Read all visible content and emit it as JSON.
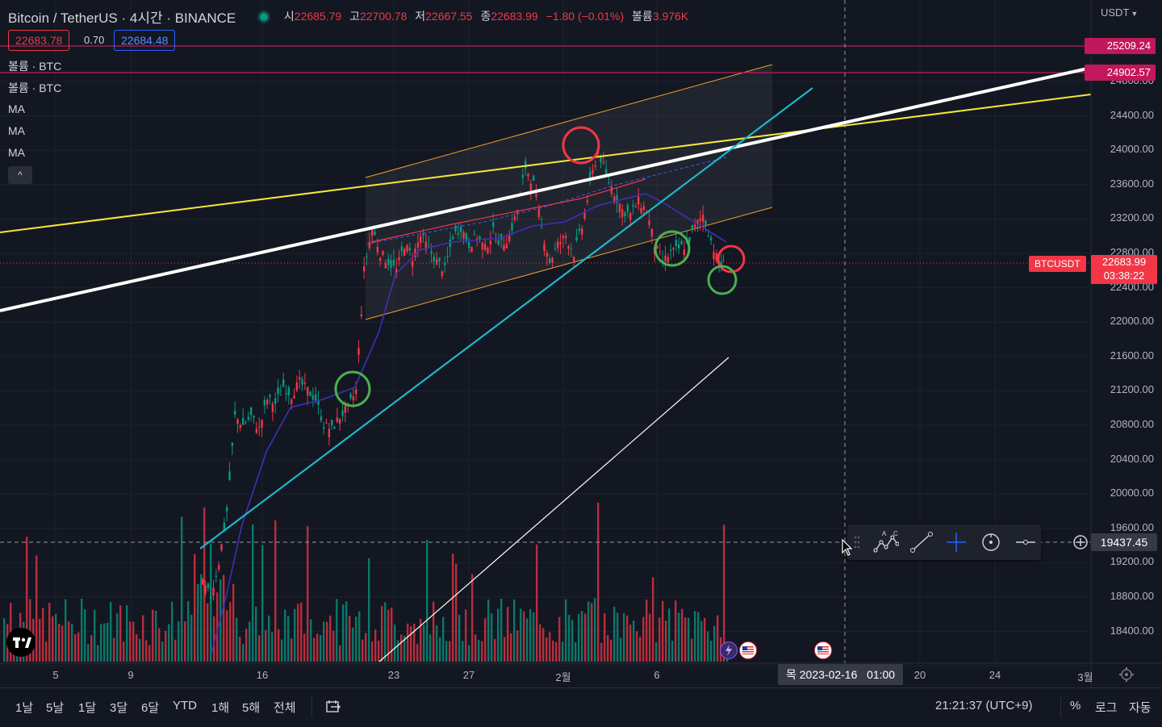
{
  "header": {
    "title": "Bitcoin / TetherUS · 4시간 · BINANCE",
    "ohlc": [
      {
        "key": "시",
        "value": "22685.79"
      },
      {
        "key": "고",
        "value": "22700.78"
      },
      {
        "key": "저",
        "value": "22667.55"
      },
      {
        "key": "종",
        "value": "22683.99"
      }
    ],
    "change": "−1.80 (−0.01%)",
    "volume_key": "볼륨",
    "volume_value": "3.976K"
  },
  "price_boxes": {
    "bid": "22683.78",
    "spread": "0.70",
    "ask": "22684.48"
  },
  "legend": [
    "볼륨 · BTC",
    "볼륨 · BTC",
    "MA",
    "MA",
    "MA"
  ],
  "currency": "USDT",
  "y_axis": {
    "ticks": [
      "24800.00",
      "24400.00",
      "24000.00",
      "23600.00",
      "23200.00",
      "22800.00",
      "22400.00",
      "22000.00",
      "21600.00",
      "21200.00",
      "20800.00",
      "20400.00",
      "20000.00",
      "19600.00",
      "19200.00",
      "18800.00",
      "18400.00"
    ],
    "tags": {
      "upper_line": "25209.24",
      "lower_line": "24902.57",
      "symbol": "BTCUSDT",
      "last_price": "22683.99",
      "countdown": "03:38:22",
      "crosshair": "19437.45"
    }
  },
  "x_axis": {
    "ticks": [
      "5",
      "9",
      "16",
      "23",
      "27",
      "2월",
      "6",
      "20",
      "24",
      "3월"
    ],
    "crosshair_date": "목 2023-02-16",
    "crosshair_time": "01:00"
  },
  "bottom_bar": {
    "ranges": [
      "1날",
      "5날",
      "1달",
      "3달",
      "6달",
      "YTD",
      "1해",
      "5해",
      "전체"
    ],
    "clock": "21:21:37 (UTC+9)",
    "percent": "%",
    "log": "로그",
    "auto": "자동"
  },
  "colors": {
    "background": "#131722",
    "up": "#089981",
    "down": "#f23645",
    "yellow_line": "#f5e63a",
    "white_line": "#ffffff",
    "teal_line": "#1fb6c9",
    "channel": "#f0a030",
    "ma": "#3f2fb8",
    "magenta_line": "#c2185b"
  }
}
